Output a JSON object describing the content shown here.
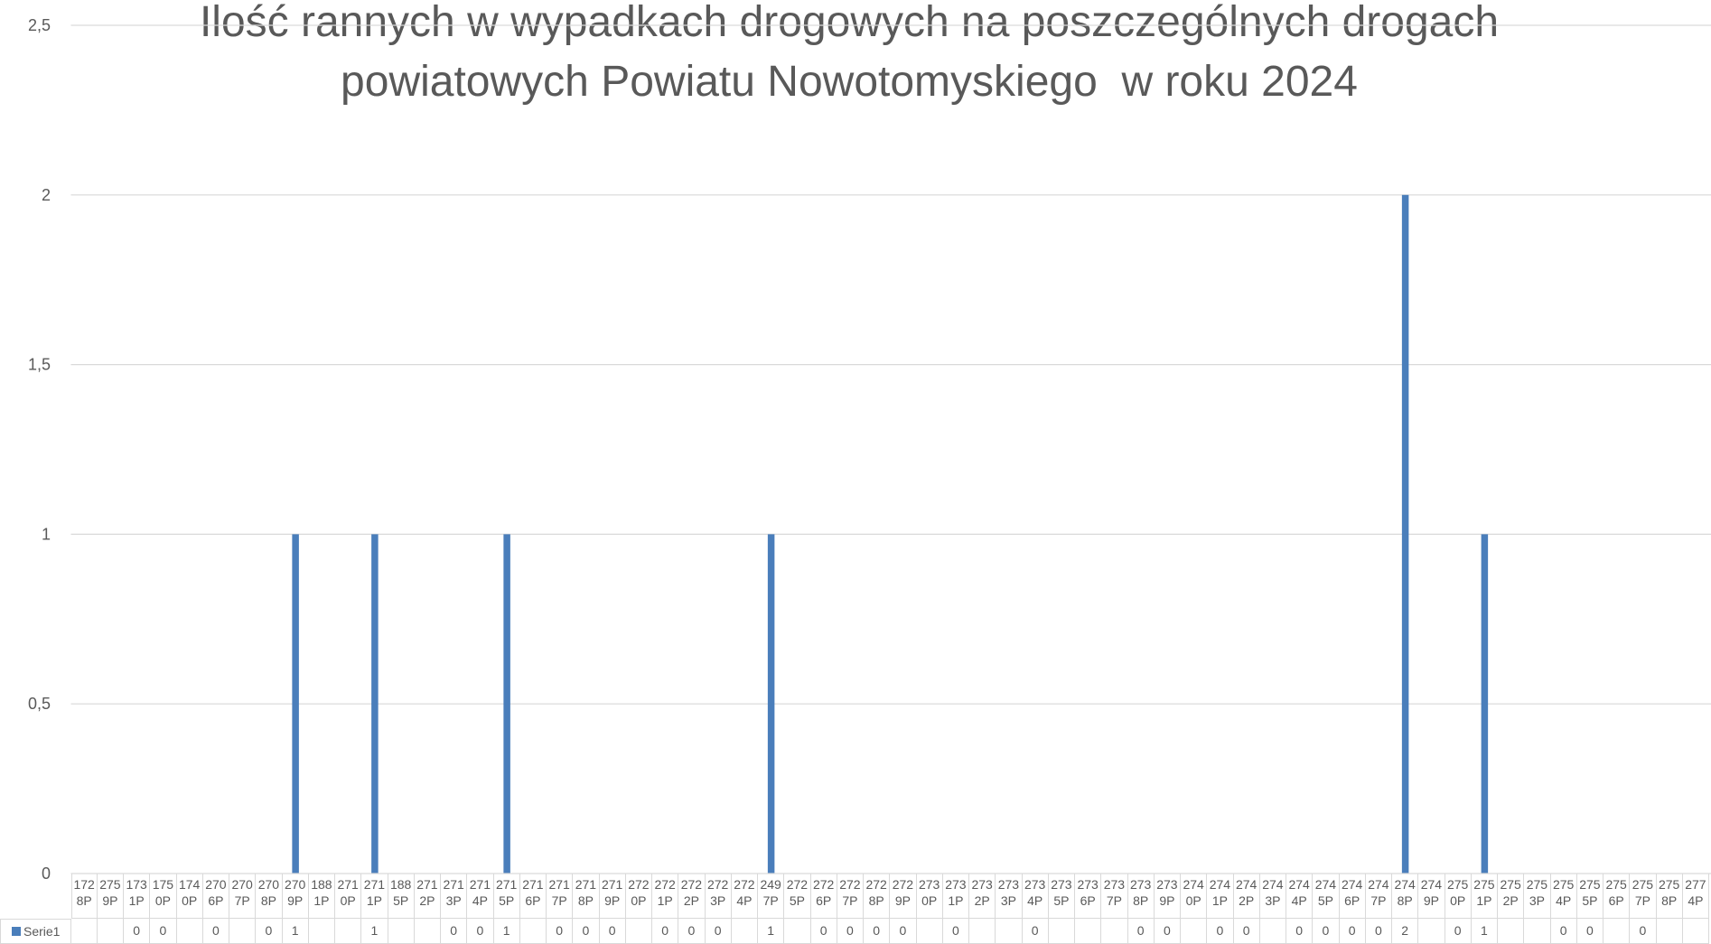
{
  "chart_data": {
    "type": "bar",
    "title": "Ilość rannych w wypadkach drogowych na poszczególnych drogach powiatowych Powiatu Nowotomyskiego  w roku 2024",
    "categories": [
      "1728P",
      "2759P",
      "1731P",
      "1750P",
      "1740P",
      "2706P",
      "2707P",
      "2708P",
      "2709P",
      "1881P",
      "2710P",
      "2711P",
      "1885P",
      "2712P",
      "2713P",
      "2714P",
      "2715P",
      "2716P",
      "2717P",
      "2718P",
      "2719P",
      "2720P",
      "2721P",
      "2722P",
      "2723P",
      "2724P",
      "2497P",
      "2725P",
      "2726P",
      "2727P",
      "2728P",
      "2729P",
      "2730P",
      "2731P",
      "2732P",
      "2733P",
      "2734P",
      "2735P",
      "2736P",
      "2737P",
      "2738P",
      "2739P",
      "2740P",
      "2741P",
      "2742P",
      "2743P",
      "2744P",
      "2745P",
      "2746P",
      "2747P",
      "2748P",
      "2749P",
      "2750P",
      "2751P",
      "2752P",
      "2753P",
      "2754P",
      "2755P",
      "2756P",
      "2757P",
      "2758P",
      "2774P"
    ],
    "series": [
      {
        "name": "Serie1",
        "color": "#4a7ebb",
        "values": [
          null,
          null,
          0,
          0,
          null,
          0,
          null,
          0,
          1,
          null,
          null,
          1,
          null,
          null,
          0,
          0,
          1,
          null,
          0,
          0,
          0,
          null,
          0,
          0,
          0,
          null,
          1,
          null,
          0,
          0,
          0,
          0,
          null,
          0,
          null,
          null,
          0,
          null,
          null,
          null,
          0,
          0,
          null,
          0,
          0,
          null,
          0,
          0,
          0,
          0,
          2,
          null,
          0,
          1,
          null,
          null,
          0,
          0,
          null,
          0,
          null,
          null
        ]
      }
    ],
    "ylim": [
      0,
      2.5
    ],
    "yticks": [
      0,
      {
        "value": 0.5,
        "label": "0,5"
      },
      1,
      {
        "value": 1.5,
        "label": "1,5"
      },
      2,
      {
        "value": 2.5,
        "label": "2,5"
      }
    ],
    "grid": true,
    "data_table": true
  }
}
